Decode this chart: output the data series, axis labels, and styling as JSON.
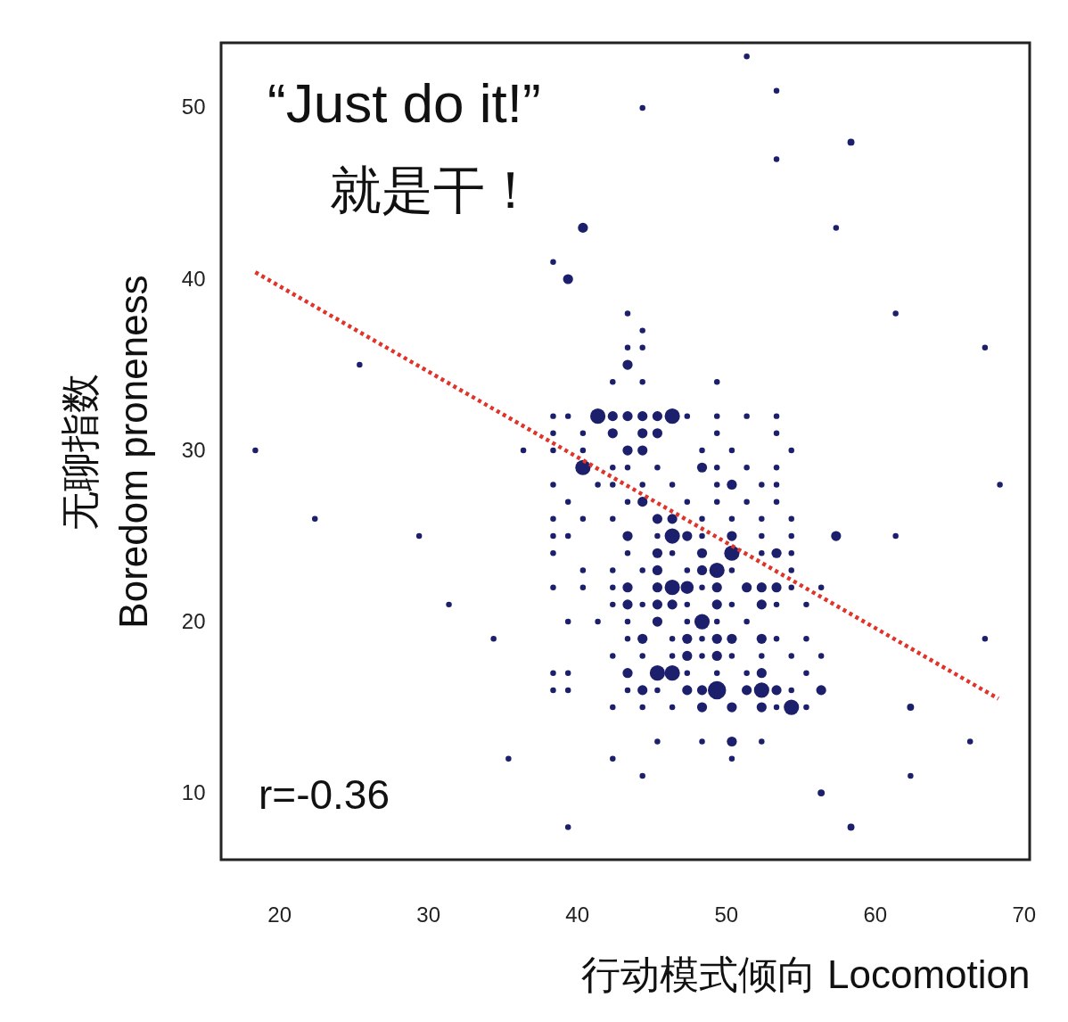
{
  "chart_data": {
    "type": "bubble",
    "xlabel": "行动模式倾向 Locomotion",
    "ylabel": "无聊指数\nBoredom proneness",
    "annotations": [
      "“Just do it!”",
      "就是干！",
      "r=-0.36"
    ],
    "xlim": [
      16.1,
      70.4
    ],
    "ylim": [
      6.1,
      53.8
    ],
    "xticks": [
      20,
      30,
      40,
      50,
      60,
      70
    ],
    "yticks": [
      10,
      20,
      30,
      40,
      50
    ],
    "grid": false,
    "marker": "circle",
    "series": [
      {
        "color": "#1c1f6b",
        "x": [
          18.4,
          22.4,
          25.4,
          29.4,
          31.4,
          34.4,
          35.4,
          68.4,
          67.4,
          67.4,
          66.4,
          58.4,
          39.4,
          44.4,
          56.4,
          62.4,
          62.4,
          61.4,
          61.4,
          57.4,
          53.4,
          51.4,
          53.4,
          44.4,
          58.4,
          40.4,
          39.4,
          38.4,
          43.4,
          44.4,
          43.4,
          44.4,
          43.4,
          42.4,
          44.4,
          49.4,
          41.4,
          46.4,
          42.4,
          43.4,
          44.4,
          45.4,
          38.4,
          39.4,
          47.4,
          49.4,
          51.4,
          53.4,
          42.4,
          44.4,
          45.4,
          38.4,
          40.4,
          49.4,
          53.4,
          43.4,
          44.4,
          36.4,
          38.4,
          40.4,
          48.4,
          50.4,
          54.4,
          40.4,
          48.4,
          42.4,
          43.4,
          45.4,
          49.4,
          51.4,
          53.4,
          50.4,
          38.4,
          41.4,
          42.4,
          44.4,
          46.4,
          49.4,
          52.4,
          53.4,
          44.4,
          39.4,
          43.4,
          47.4,
          49.4,
          51.4,
          53.4,
          45.4,
          46.4,
          38.4,
          40.4,
          42.4,
          48.4,
          50.4,
          52.4,
          54.4,
          46.4,
          43.4,
          47.4,
          50.4,
          57.4,
          38.4,
          39.4,
          45.4,
          48.4,
          52.4,
          54.4,
          50.4,
          45.4,
          48.4,
          53.4,
          38.4,
          43.4,
          46.4,
          52.4,
          54.4,
          49.4,
          45.4,
          48.4,
          40.4,
          42.4,
          44.4,
          47.4,
          50.4,
          54.4,
          46.4,
          47.4,
          43.4,
          45.4,
          49.4,
          51.4,
          52.4,
          53.4,
          38.4,
          40.4,
          42.4,
          48.4,
          54.4,
          56.4,
          43.4,
          45.4,
          46.4,
          49.4,
          52.4,
          42.4,
          44.4,
          47.4,
          50.4,
          53.4,
          55.4,
          48.4,
          45.4,
          39.4,
          41.4,
          43.4,
          47.4,
          49.4,
          51.4,
          44.4,
          47.4,
          49.4,
          50.4,
          52.4,
          43.4,
          46.4,
          48.4,
          53.4,
          55.4,
          47.4,
          49.4,
          42.4,
          44.4,
          46.4,
          48.4,
          50.4,
          52.4,
          54.4,
          56.4,
          45.4,
          46.4,
          43.4,
          52.4,
          38.4,
          39.4,
          47.4,
          49.4,
          51.4,
          55.4,
          49.4,
          52.4,
          44.4,
          47.4,
          48.4,
          51.4,
          53.4,
          56.4,
          38.4,
          39.4,
          43.4,
          45.4,
          54.4,
          54.4,
          48.4,
          50.4,
          52.4,
          42.4,
          44.4,
          46.4,
          53.4,
          55.4,
          50.4,
          45.4,
          52.4,
          48.4,
          42.4,
          50.4
        ],
        "values": [
          30,
          26,
          35,
          25,
          21,
          19,
          12,
          28,
          36,
          19,
          13,
          8,
          8,
          11,
          10,
          11,
          15,
          25,
          38,
          43,
          47,
          53,
          51,
          50,
          48,
          43,
          40,
          41,
          38,
          37,
          36,
          36,
          35,
          34,
          34,
          34,
          32,
          32,
          32,
          32,
          32,
          32,
          32,
          32,
          32,
          32,
          32,
          32,
          31,
          31,
          31,
          31,
          31,
          31,
          31,
          30,
          30,
          30,
          30,
          30,
          30,
          30,
          30,
          29,
          29,
          29,
          29,
          29,
          29,
          29,
          29,
          28,
          28,
          28,
          28,
          28,
          28,
          28,
          28,
          28,
          27,
          27,
          27,
          27,
          27,
          27,
          27,
          26,
          26,
          26,
          26,
          26,
          26,
          26,
          26,
          26,
          25,
          25,
          25,
          25,
          25,
          25,
          25,
          25,
          25,
          25,
          25,
          24,
          24,
          24,
          24,
          24,
          24,
          24,
          24,
          24,
          23,
          23,
          23,
          23,
          23,
          23,
          23,
          23,
          23,
          22,
          22,
          22,
          22,
          22,
          22,
          22,
          22,
          22,
          22,
          22,
          22,
          22,
          22,
          21,
          21,
          21,
          21,
          21,
          21,
          21,
          21,
          21,
          21,
          21,
          20,
          20,
          20,
          20,
          20,
          20,
          20,
          20,
          19,
          19,
          19,
          19,
          19,
          19,
          19,
          19,
          19,
          19,
          18,
          18,
          18,
          18,
          18,
          18,
          18,
          18,
          18,
          18,
          17,
          17,
          17,
          17,
          17,
          17,
          17,
          17,
          17,
          17,
          16,
          16,
          16,
          16,
          16,
          16,
          16,
          16,
          16,
          16,
          16,
          16,
          16,
          15,
          15,
          15,
          15,
          15,
          15,
          15,
          15,
          15,
          13,
          13,
          13,
          13,
          12,
          12
        ],
        "sizes": [
          0.1,
          0.1,
          0.1,
          0.1,
          0.1,
          0.1,
          0.1,
          0.1,
          0.1,
          0.1,
          0.1,
          0.15,
          0.1,
          0.1,
          0.15,
          0.1,
          0.15,
          0.1,
          0.1,
          0.1,
          0.1,
          0.1,
          0.1,
          0.1,
          0.15,
          0.3,
          0.3,
          0.1,
          0.1,
          0.1,
          0.1,
          0.1,
          0.3,
          0.1,
          0.1,
          0.1,
          0.7,
          0.7,
          0.3,
          0.3,
          0.3,
          0.3,
          0.1,
          0.1,
          0.1,
          0.1,
          0.1,
          0.1,
          0.3,
          0.3,
          0.3,
          0.1,
          0.1,
          0.1,
          0.1,
          0.3,
          0.3,
          0.1,
          0.1,
          0.1,
          0.1,
          0.1,
          0.1,
          0.7,
          0.3,
          0.1,
          0.1,
          0.1,
          0.1,
          0.1,
          0.1,
          0.3,
          0.1,
          0.1,
          0.1,
          0.1,
          0.1,
          0.1,
          0.1,
          0.1,
          0.3,
          0.1,
          0.1,
          0.1,
          0.1,
          0.1,
          0.1,
          0.3,
          0.3,
          0.1,
          0.1,
          0.1,
          0.1,
          0.1,
          0.1,
          0.1,
          0.7,
          0.3,
          0.3,
          0.3,
          0.3,
          0.1,
          0.1,
          0.1,
          0.1,
          0.1,
          0.1,
          0.7,
          0.3,
          0.3,
          0.3,
          0.1,
          0.1,
          0.1,
          0.1,
          0.1,
          0.7,
          0.3,
          0.3,
          0.1,
          0.1,
          0.1,
          0.1,
          0.1,
          0.1,
          0.7,
          0.5,
          0.3,
          0.3,
          0.3,
          0.3,
          0.3,
          0.3,
          0.1,
          0.1,
          0.1,
          0.1,
          0.1,
          0.1,
          0.3,
          0.3,
          0.3,
          0.3,
          0.3,
          0.1,
          0.1,
          0.1,
          0.1,
          0.1,
          0.1,
          0.7,
          0.3,
          0.1,
          0.1,
          0.1,
          0.1,
          0.1,
          0.1,
          0.3,
          0.3,
          0.3,
          0.3,
          0.3,
          0.1,
          0.1,
          0.1,
          0.1,
          0.1,
          0.3,
          0.3,
          0.1,
          0.1,
          0.1,
          0.1,
          0.1,
          0.1,
          0.1,
          0.1,
          0.7,
          0.7,
          0.3,
          0.3,
          0.1,
          0.1,
          0.1,
          0.1,
          0.1,
          0.1,
          1,
          0.7,
          0.3,
          0.3,
          0.3,
          0.3,
          0.3,
          0.3,
          0.1,
          0.1,
          0.1,
          0.1,
          0.1,
          0.7,
          0.3,
          0.3,
          0.3,
          0.1,
          0.1,
          0.1,
          0.1,
          0.1,
          0.3,
          0.1,
          0.1,
          0.1,
          0.1,
          0.1
        ]
      },
      {
        "type": "line",
        "color": "#e0342a",
        "line_style": "dotted",
        "marker": "none",
        "x": [
          18.4,
          68.3
        ],
        "values": [
          40.4,
          15.5
        ]
      }
    ]
  }
}
